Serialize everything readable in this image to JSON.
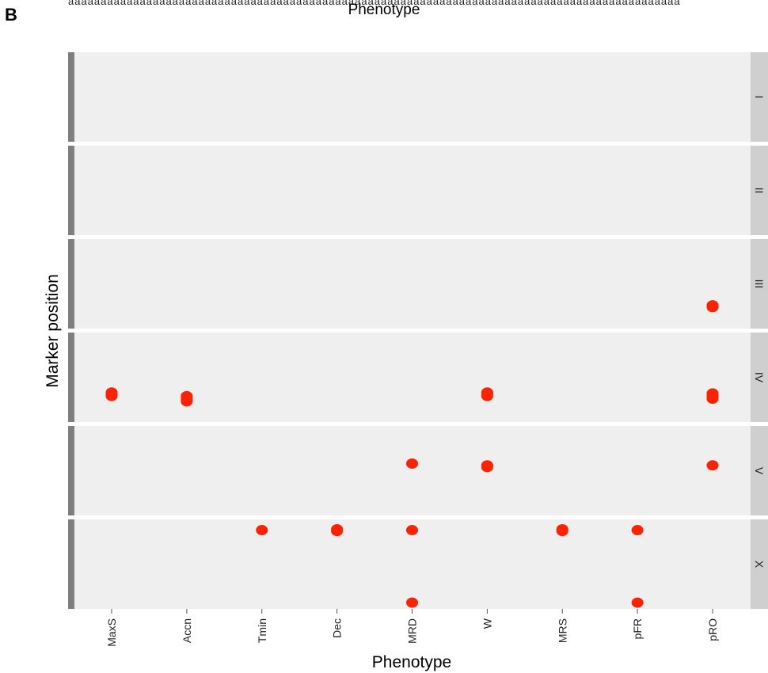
{
  "panel_label": "B",
  "top_axis_title": "Phenotype",
  "top_tick_residue": "aaaaaaaaaaaaaaaaaaaaaaaaaaaaaaaaaaaaaaaaaaaaaaaaaaaaaaaaaaaaaaaaaaaaaaaaaaaaaaaaaaaaaaaaaaaaaa",
  "colors": {
    "panel_bg": "#efefef",
    "strip_bg": "#cfcfcf",
    "left_bar": "#7f7f7f",
    "point": "#ff2200"
  },
  "chart_data": {
    "type": "scatter",
    "title": "",
    "xlabel": "Phenotype",
    "ylabel": "Marker position",
    "categories": [
      "MaxS",
      "Accn",
      "Tmin",
      "Dec",
      "MRD",
      "W",
      "MRS",
      "pFR",
      "pRO"
    ],
    "facets": [
      "I",
      "II",
      "III",
      "IV",
      "V",
      "X"
    ],
    "facet_layout": "stacked rows, strip labels on right",
    "grid": false,
    "legend": "none",
    "y_within_facet_range": [
      0,
      1
    ],
    "points": [
      {
        "facet": "III",
        "x": "pRO",
        "y": 0.25,
        "n": 2
      },
      {
        "facet": "IV",
        "x": "MaxS",
        "y": 0.31,
        "n": 3
      },
      {
        "facet": "IV",
        "x": "Accn",
        "y": 0.26,
        "n": 4
      },
      {
        "facet": "IV",
        "x": "W",
        "y": 0.31,
        "n": 3
      },
      {
        "facet": "IV",
        "x": "pRO",
        "y": 0.29,
        "n": 4
      },
      {
        "facet": "V",
        "x": "MRD",
        "y": 0.58,
        "n": 1
      },
      {
        "facet": "V",
        "x": "W",
        "y": 0.55,
        "n": 2
      },
      {
        "facet": "V",
        "x": "pRO",
        "y": 0.56,
        "n": 1
      },
      {
        "facet": "X",
        "x": "Tmin",
        "y": 0.88,
        "n": 1
      },
      {
        "facet": "X",
        "x": "Dec",
        "y": 0.88,
        "n": 2
      },
      {
        "facet": "X",
        "x": "MRD",
        "y": 0.88,
        "n": 1
      },
      {
        "facet": "X",
        "x": "MRS",
        "y": 0.88,
        "n": 2
      },
      {
        "facet": "X",
        "x": "pFR",
        "y": 0.88,
        "n": 1
      },
      {
        "facet": "X",
        "x": "MRD",
        "y": 0.07,
        "n": 1
      },
      {
        "facet": "X",
        "x": "pFR",
        "y": 0.07,
        "n": 1
      }
    ]
  }
}
